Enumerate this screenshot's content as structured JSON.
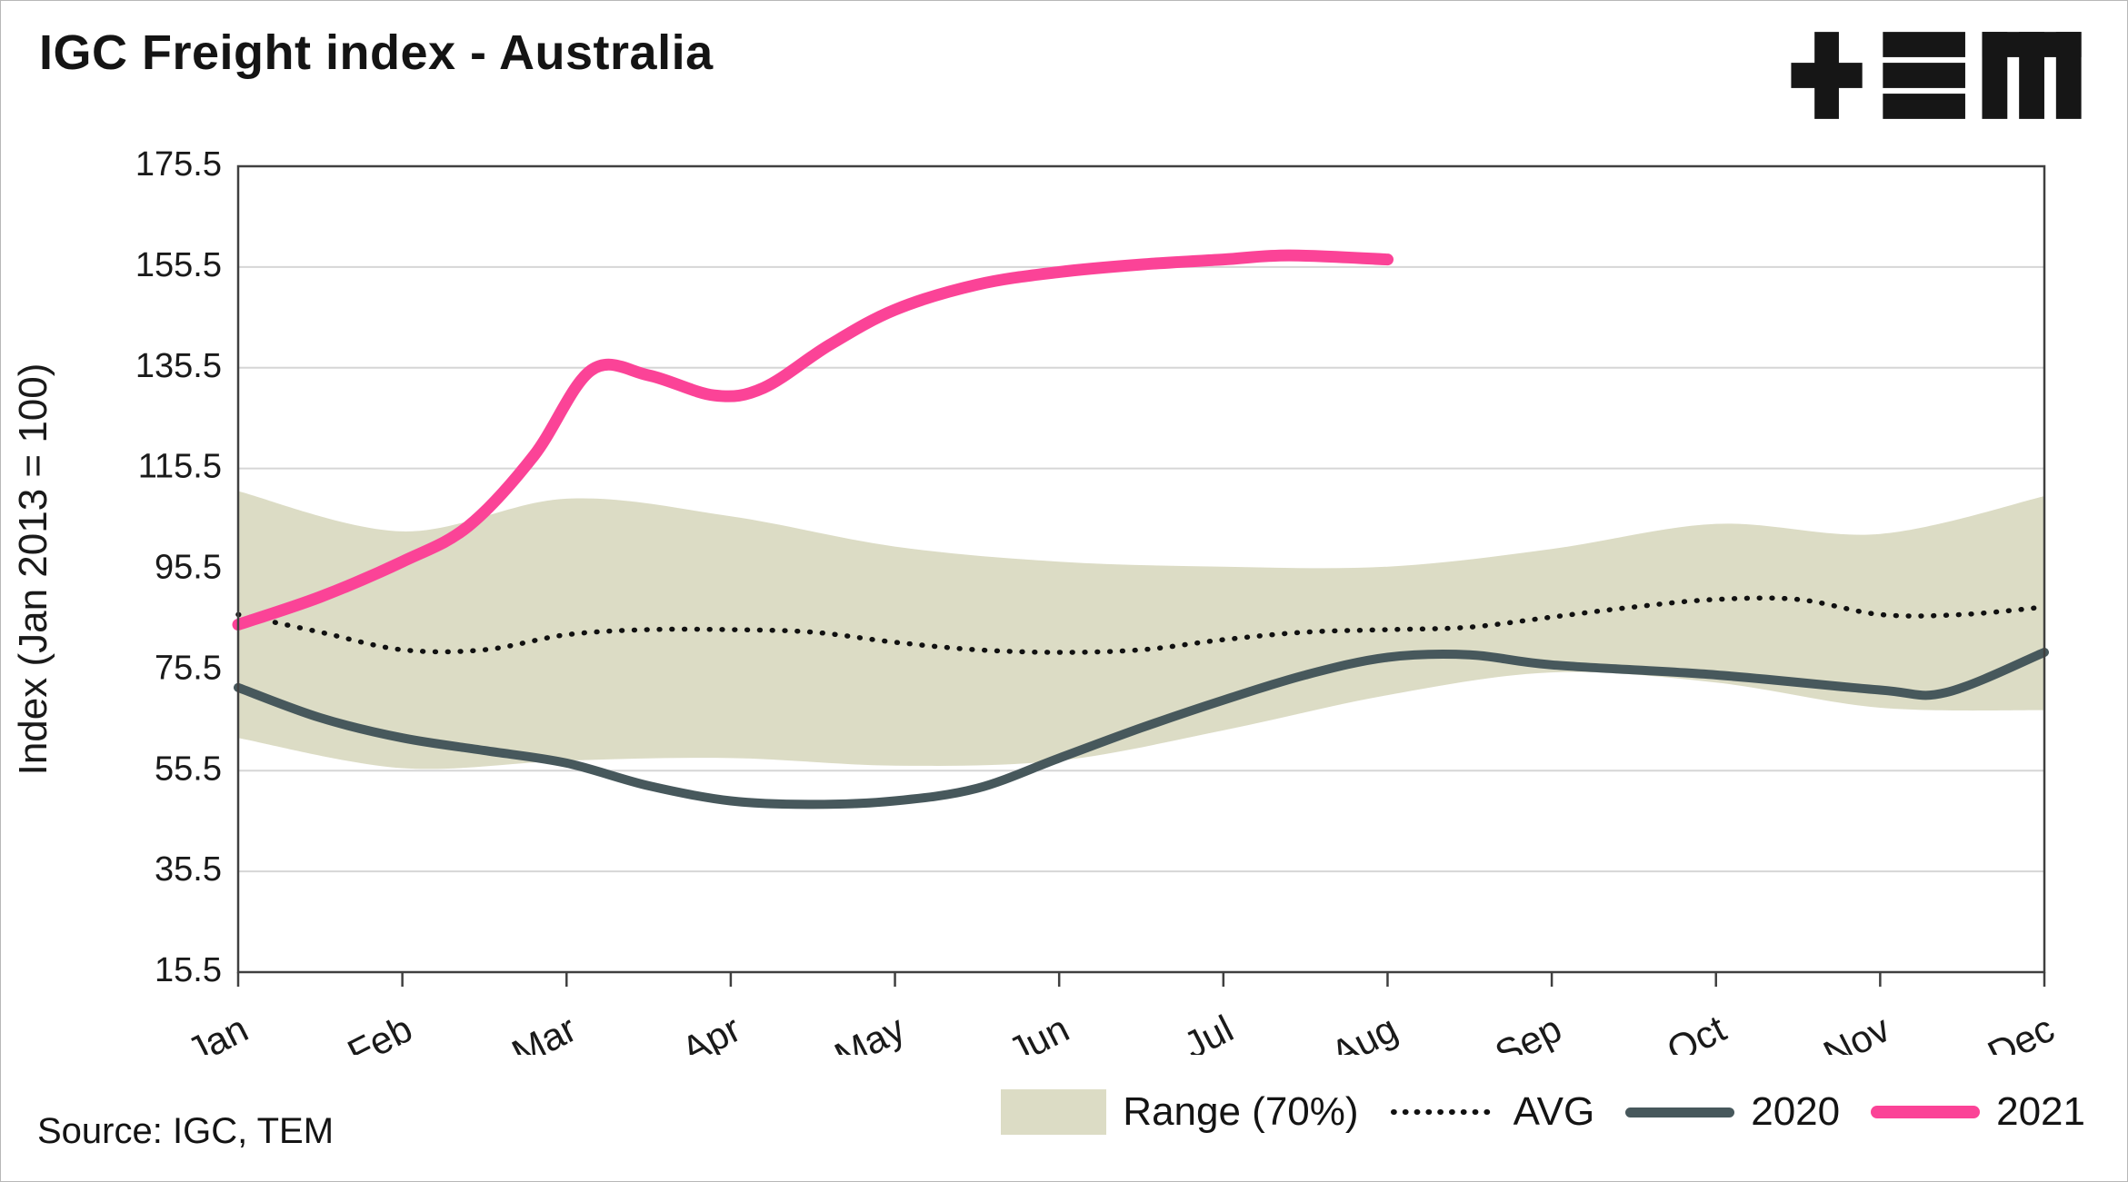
{
  "header": {
    "logo_name": "TEM"
  },
  "source": "Source: IGC, TEM",
  "colors": {
    "band": "#dcdcc5",
    "avg": "#111111",
    "y2020": "#47585c",
    "y2021": "#fb4397",
    "grid": "#d6d6d6",
    "axis": "#404040",
    "logo": "#161616"
  },
  "chart_data": {
    "type": "line",
    "title": "IGC Freight index - Australia",
    "ylabel": "Index (Jan 2013 = 100)",
    "ylim": [
      15.5,
      175.5
    ],
    "yticks": [
      15.5,
      35.5,
      55.5,
      75.5,
      95.5,
      115.5,
      135.5,
      155.5,
      175.5
    ],
    "categories": [
      "Jan",
      "Feb",
      "Mar",
      "Apr",
      "May",
      "Jun",
      "Jul",
      "Aug",
      "Sep",
      "Oct",
      "Nov",
      "Dec"
    ],
    "x_unit": "month index, Jan = 0",
    "grid": "horizontal",
    "legend_position": "bottom-right",
    "band": {
      "name": "Range (70%)",
      "color": "#dcdcc5",
      "x": [
        0,
        1,
        2,
        3,
        4,
        5,
        6,
        7,
        8,
        9,
        10,
        11
      ],
      "upper": [
        111,
        103,
        109.5,
        106,
        100,
        97,
        96,
        96,
        99.5,
        104.5,
        102.5,
        110
      ],
      "lower": [
        62,
        56,
        57.5,
        58,
        56.5,
        57.5,
        63.5,
        70.5,
        75,
        73,
        68,
        67.5
      ]
    },
    "series": [
      {
        "name": "AVG",
        "style": "dotted",
        "color": "#111111",
        "x": [
          0,
          0.5,
          1,
          1.5,
          2,
          2.5,
          3,
          3.5,
          4,
          4.5,
          5,
          5.5,
          6,
          6.5,
          7,
          7.5,
          8,
          8.5,
          9,
          9.5,
          10,
          10.5,
          11
        ],
        "values": [
          86.5,
          83,
          79.5,
          79.5,
          82.5,
          83.5,
          83.5,
          83,
          81,
          79.5,
          79,
          79.5,
          81.5,
          83,
          83.5,
          84,
          86,
          88,
          89.5,
          89.5,
          86.5,
          86.5,
          88
        ]
      },
      {
        "name": "2020",
        "style": "solid",
        "color": "#47585c",
        "x": [
          0,
          0.5,
          1,
          1.5,
          2,
          2.5,
          3,
          3.5,
          4,
          4.5,
          5,
          5.5,
          6,
          6.5,
          7,
          7.5,
          8,
          9,
          10,
          10.4,
          11
        ],
        "values": [
          72,
          66,
          62,
          59.5,
          57,
          52.5,
          49.5,
          48.8,
          49.5,
          52,
          58,
          64,
          69.5,
          74.5,
          78,
          78.5,
          76.5,
          74.5,
          71.5,
          71,
          79
        ]
      },
      {
        "name": "2021",
        "style": "solid",
        "color": "#fb4397",
        "x": [
          0,
          0.5,
          1,
          1.4,
          1.8,
          2.15,
          2.5,
          2.9,
          3.2,
          3.6,
          4,
          4.5,
          5,
          5.5,
          6,
          6.4,
          7
        ],
        "values": [
          84.5,
          90,
          97,
          104,
          118,
          135,
          134,
          130,
          131.5,
          140,
          147,
          152,
          154.5,
          156,
          157,
          157.8,
          157
        ]
      }
    ]
  }
}
